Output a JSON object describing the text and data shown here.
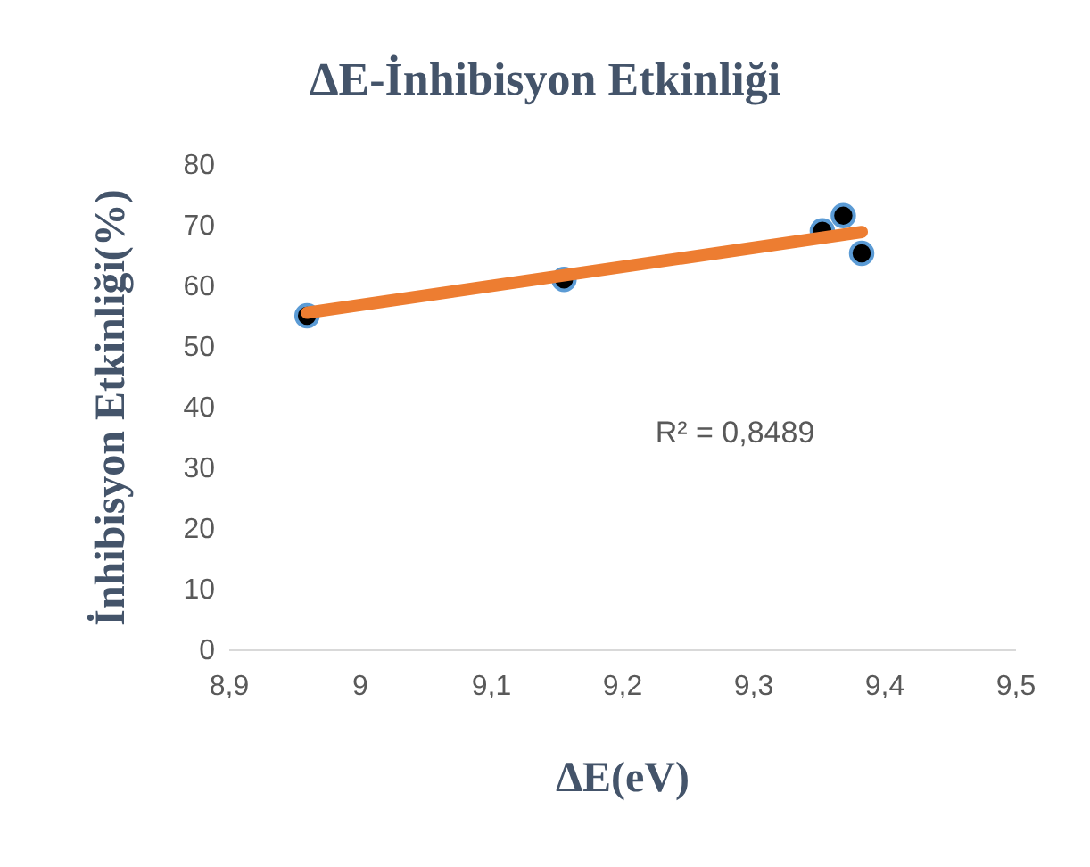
{
  "chart_data": {
    "type": "scatter",
    "title": "ΔE-İnhibisyon Etkinliği",
    "xlabel": "ΔE(eV)",
    "ylabel": "İnhibisyon Etkinliği(%)",
    "xlim": [
      8.9,
      9.5
    ],
    "xticks": [
      {
        "value": 8.9,
        "label": "8,9"
      },
      9,
      {
        "value": 9.1,
        "label": "9,1"
      },
      {
        "value": 9.2,
        "label": "9,2"
      },
      {
        "value": 9.3,
        "label": "9,3"
      },
      {
        "value": 9.4,
        "label": "9,4"
      },
      {
        "value": 9.5,
        "label": "9,5"
      }
    ],
    "ylim": [
      0,
      80
    ],
    "yticks": [
      0,
      10,
      20,
      30,
      40,
      50,
      60,
      70,
      80
    ],
    "grid": false,
    "legend": false,
    "marker": "circle",
    "series": [
      {
        "type": "line",
        "marker": "none",
        "color": "#ed7d31",
        "x": [
          8.96,
          9.383
        ],
        "values": [
          55.5,
          68.8
        ]
      },
      {
        "color": "#000000",
        "x": [
          8.96,
          9.156,
          9.353,
          9.369,
          9.383
        ],
        "values": [
          55,
          61,
          69,
          71.5,
          65.3
        ]
      }
    ],
    "annotations": [
      "R² = 0,8489"
    ]
  }
}
